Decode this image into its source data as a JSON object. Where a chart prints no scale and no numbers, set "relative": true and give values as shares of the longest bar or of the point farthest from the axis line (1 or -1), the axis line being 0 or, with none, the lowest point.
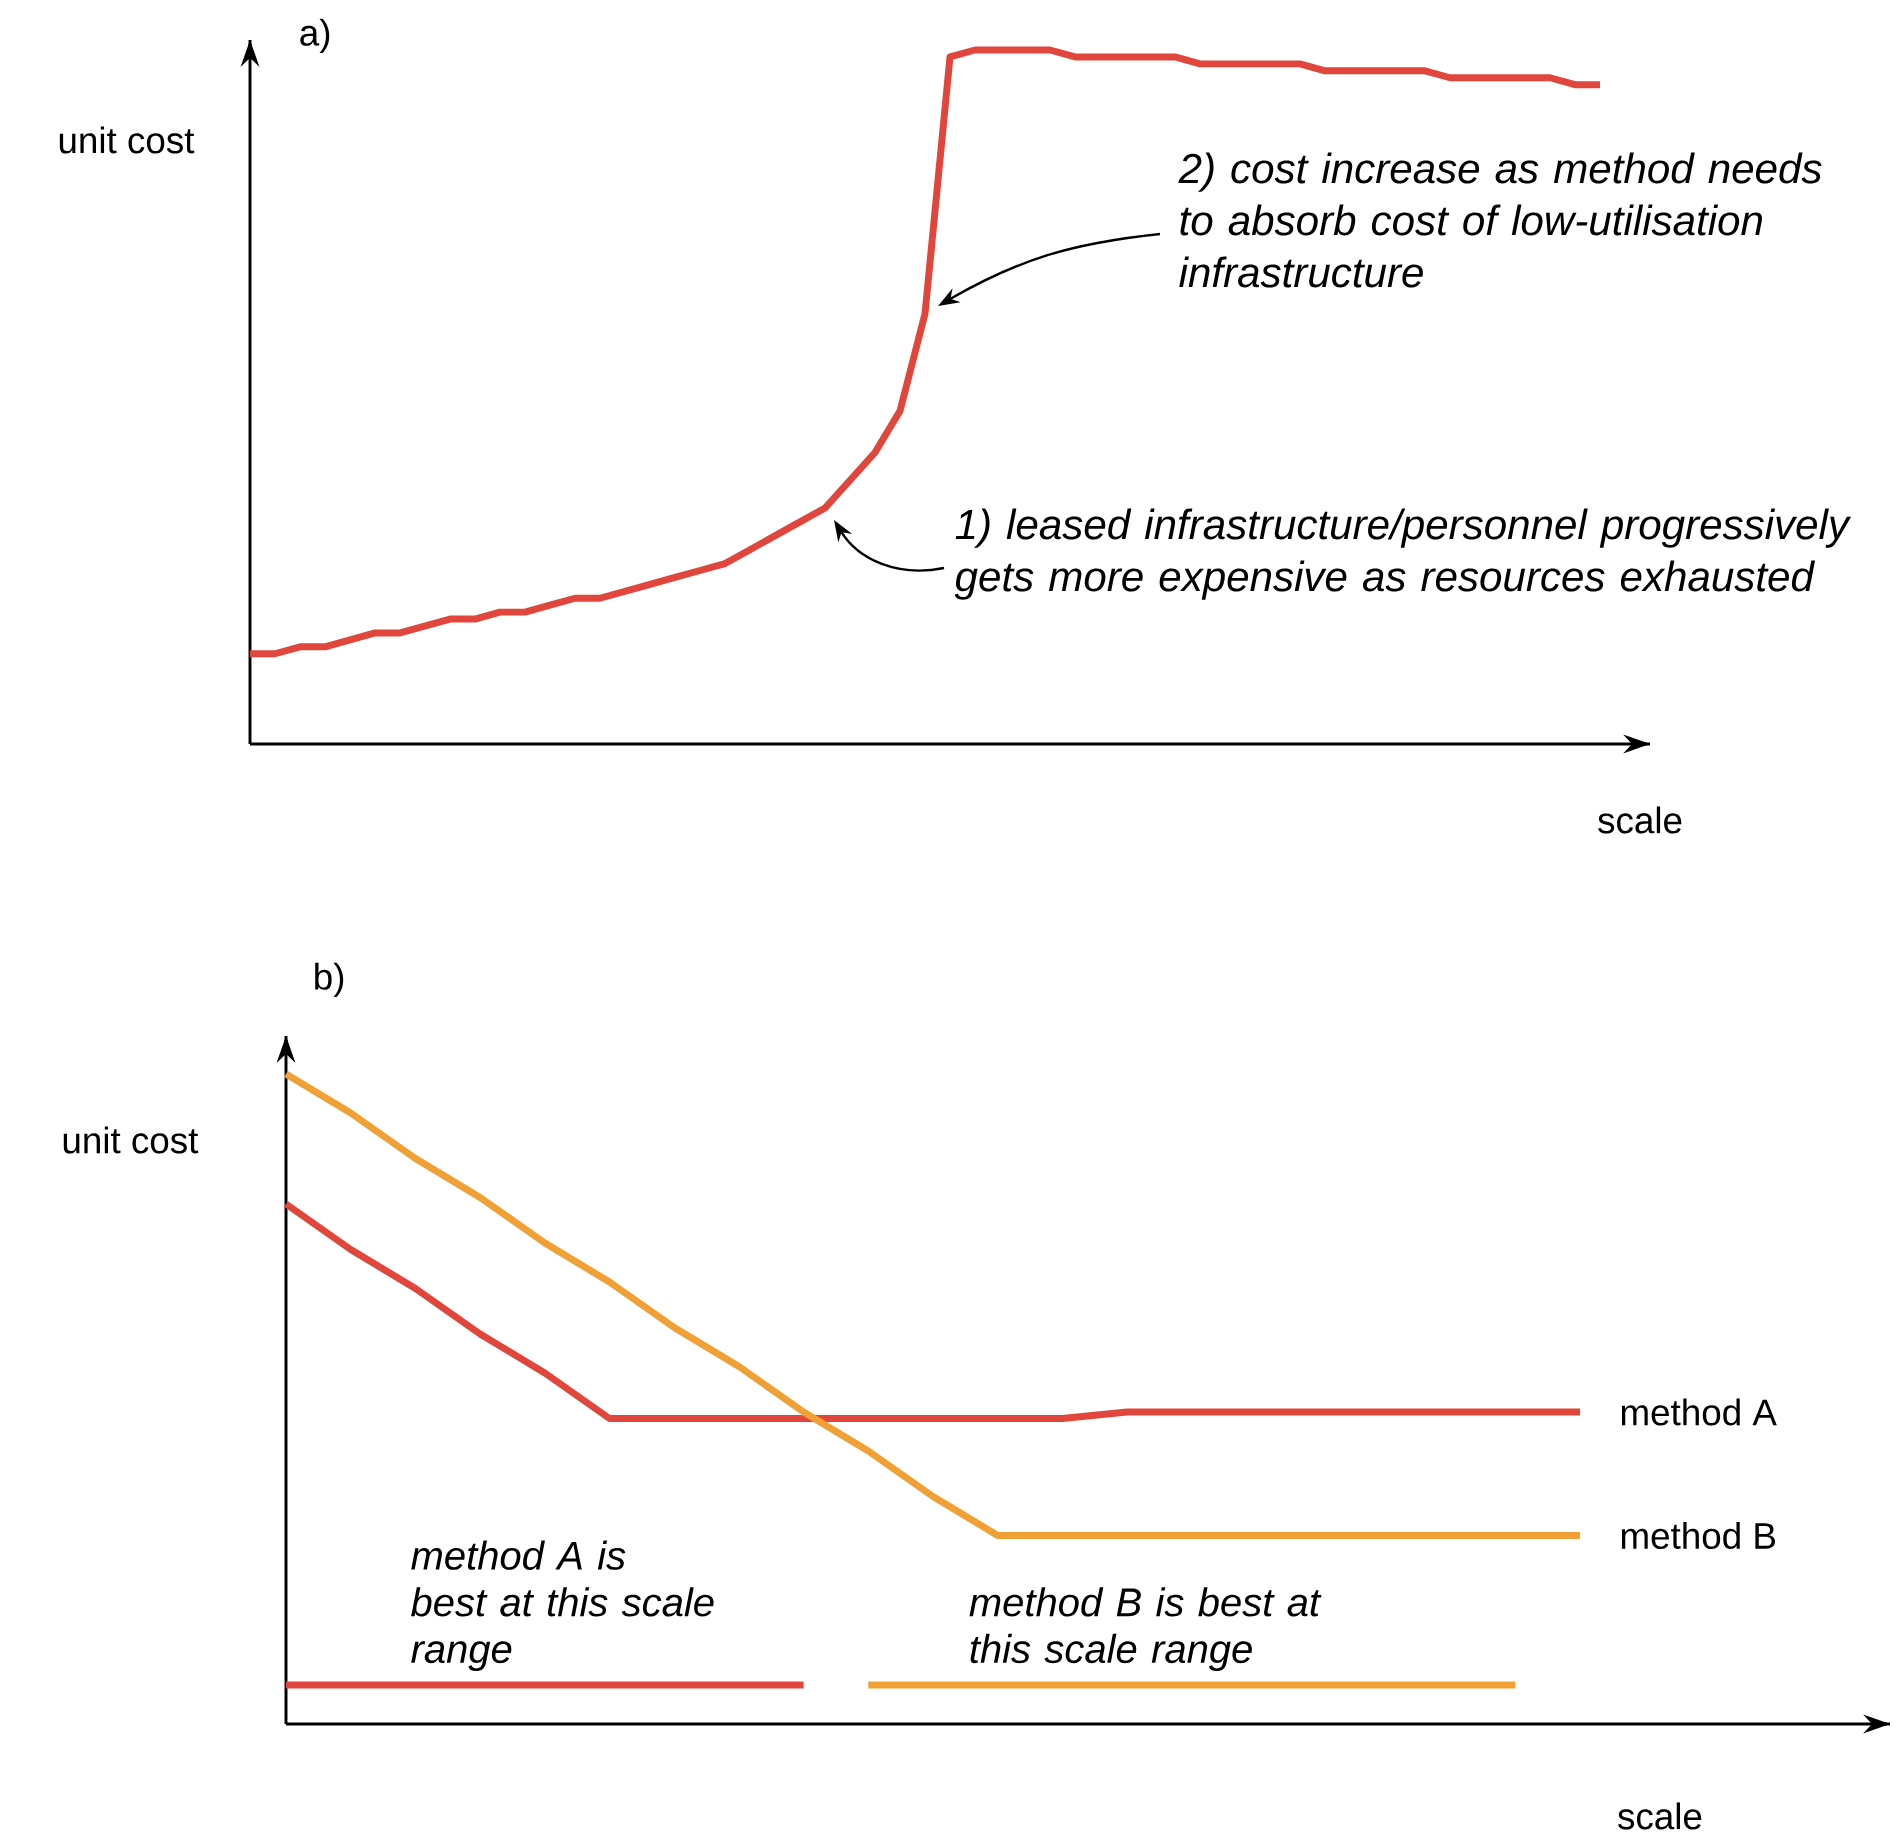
{
  "chart_data": [
    {
      "type": "line",
      "title": "a)",
      "xlabel": "scale",
      "ylabel": "unit cost",
      "relative": true,
      "categories": [
        null,
        null,
        null,
        null,
        null,
        null,
        null,
        null,
        null,
        null,
        null,
        null,
        null,
        null,
        null,
        null,
        null,
        null,
        null,
        null,
        null,
        null,
        null,
        null,
        null,
        null,
        null,
        null,
        null,
        null,
        null,
        null,
        null,
        null,
        null,
        null,
        null,
        null,
        null,
        null,
        null,
        null,
        null,
        null,
        null,
        null,
        null,
        null,
        null,
        null,
        null,
        null,
        null,
        null,
        null
      ],
      "series": [
        {
          "color": "#e0463c",
          "values": [
            0.13,
            0.13,
            0.14,
            0.14,
            0.15,
            0.16,
            0.16,
            0.17,
            0.18,
            0.18,
            0.19,
            0.19,
            0.2,
            0.21,
            0.21,
            0.22,
            0.23,
            0.24,
            0.25,
            0.26,
            0.28,
            0.3,
            0.32,
            0.34,
            0.38,
            0.42,
            0.48,
            0.62,
            0.99,
            1.0,
            1.0,
            1.0,
            1.0,
            0.99,
            0.99,
            0.99,
            0.99,
            0.99,
            0.98,
            0.98,
            0.98,
            0.98,
            0.98,
            0.97,
            0.97,
            0.97,
            0.97,
            0.97,
            0.96,
            0.96,
            0.96,
            0.96,
            0.96,
            0.95,
            0.95
          ]
        }
      ],
      "annotations": [
        "2) cost increase as method needs to absorb cost of low-utilisation infrastructure",
        "1) leased infrastructure/personnel progressively gets more expensive as resources exhausted"
      ]
    },
    {
      "type": "line",
      "title": "b)",
      "xlabel": "scale",
      "ylabel": "unit cost",
      "relative": true,
      "categories": [
        null,
        null,
        null,
        null,
        null,
        null,
        null,
        null,
        null,
        null,
        null,
        null,
        null,
        null,
        null,
        null,
        null,
        null,
        null,
        null,
        null
      ],
      "series": [
        {
          "name": "method A",
          "color": "#e0463c",
          "values": [
            0.8,
            0.73,
            0.67,
            0.6,
            0.54,
            0.47,
            0.47,
            0.47,
            0.47,
            0.47,
            0.47,
            0.47,
            0.47,
            0.48,
            0.48,
            0.48,
            0.48,
            0.48,
            0.48,
            0.48,
            0.48
          ]
        },
        {
          "name": "method B",
          "color": "#f0a035",
          "values": [
            1.0,
            0.94,
            0.87,
            0.81,
            0.74,
            0.68,
            0.61,
            0.55,
            0.48,
            0.42,
            0.35,
            0.29,
            0.29,
            0.29,
            0.29,
            0.29,
            0.29,
            0.29,
            0.29,
            0.29,
            0.29
          ]
        },
        {
          "name": "method A is best at this scale range",
          "color": "#e0463c",
          "values": [
            0.06,
            0.06,
            0.06,
            0.06,
            0.06,
            0.06,
            0.06,
            0.06,
            0.06,
            null,
            null,
            null,
            null,
            null,
            null,
            null,
            null,
            null,
            null,
            null,
            null
          ]
        },
        {
          "name": "method B is best at this scale range",
          "color": "#f0a035",
          "values": [
            null,
            null,
            null,
            null,
            null,
            null,
            null,
            null,
            null,
            0.06,
            0.06,
            0.06,
            0.06,
            0.06,
            0.06,
            0.06,
            0.06,
            0.06,
            0.06,
            0.06,
            null
          ]
        }
      ]
    }
  ]
}
